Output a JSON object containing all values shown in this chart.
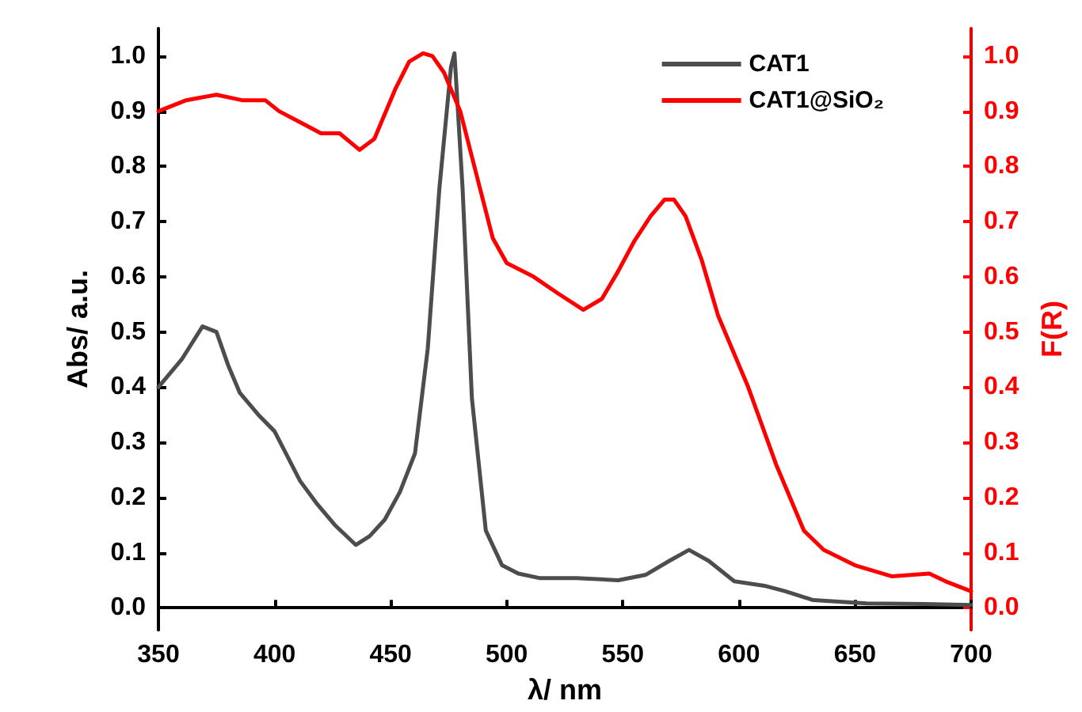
{
  "chart_data": {
    "type": "line",
    "xlabel": "λ/ nm",
    "ylabel": "Abs/ a.u.",
    "y2label": "F(R)",
    "xlim": [
      350,
      700
    ],
    "xticks": [
      350,
      400,
      450,
      500,
      550,
      600,
      650,
      700
    ],
    "ylim": [
      -0.04,
      1.05
    ],
    "yticks": [
      {
        "value": 0,
        "label": "0.0"
      },
      0.1,
      0.2,
      0.3,
      0.4,
      0.5,
      0.6,
      0.7,
      0.8,
      0.9,
      {
        "value": 1,
        "label": "1.0"
      }
    ],
    "y2lim": [
      -0.04,
      1.05
    ],
    "y2ticks": [
      {
        "value": 0,
        "label": "0.0"
      },
      0.1,
      0.2,
      0.3,
      0.4,
      0.5,
      0.6,
      0.7,
      0.8,
      0.9,
      {
        "value": 1,
        "label": "1.0"
      }
    ],
    "legend": "top right",
    "grid": false,
    "marker": "none",
    "line_style": "solid",
    "series": [
      {
        "name": "CAT1",
        "color": "#4d4d4d",
        "x": [
          350,
          360,
          369,
          375,
          380,
          385,
          393,
          400,
          411,
          418,
          426,
          435,
          441,
          447.5,
          454,
          460.5,
          466,
          471,
          476,
          477.5,
          481,
          485,
          491,
          498,
          505,
          514,
          530,
          548,
          560,
          570,
          578.5,
          587,
          598,
          611,
          620,
          632,
          655,
          680,
          700
        ],
        "values": [
          0.4,
          0.45,
          0.51,
          0.5,
          0.44,
          0.39,
          0.35,
          0.32,
          0.23,
          0.19,
          0.15,
          0.114,
          0.13,
          0.16,
          0.21,
          0.28,
          0.47,
          0.76,
          0.98,
          1.005,
          0.76,
          0.38,
          0.14,
          0.077,
          0.062,
          0.054,
          0.054,
          0.05,
          0.06,
          0.085,
          0.105,
          0.085,
          0.048,
          0.04,
          0.03,
          0.014,
          0.008,
          0.007,
          0.005
        ]
      },
      {
        "name": "CAT1@SiO₂",
        "color": "#ff0000",
        "x": [
          350,
          362,
          375,
          386,
          396,
          402,
          411,
          420,
          428,
          436.6,
          443,
          452,
          458,
          464,
          468,
          473,
          480,
          488.5,
          494,
          500,
          511.6,
          522,
          533,
          541,
          548,
          555,
          562,
          568,
          572,
          577,
          584,
          591,
          604,
          616,
          628,
          636.5,
          650,
          666,
          682,
          689,
          700
        ],
        "values": [
          0.9,
          0.92,
          0.93,
          0.92,
          0.92,
          0.9,
          0.88,
          0.86,
          0.86,
          0.83,
          0.85,
          0.94,
          0.99,
          1.005,
          1.0,
          0.97,
          0.9,
          0.76,
          0.67,
          0.625,
          0.6,
          0.57,
          0.54,
          0.56,
          0.61,
          0.665,
          0.71,
          0.74,
          0.74,
          0.71,
          0.63,
          0.53,
          0.4,
          0.26,
          0.14,
          0.105,
          0.077,
          0.057,
          0.062,
          0.048,
          0.03
        ],
        "axis": "y2"
      }
    ]
  }
}
